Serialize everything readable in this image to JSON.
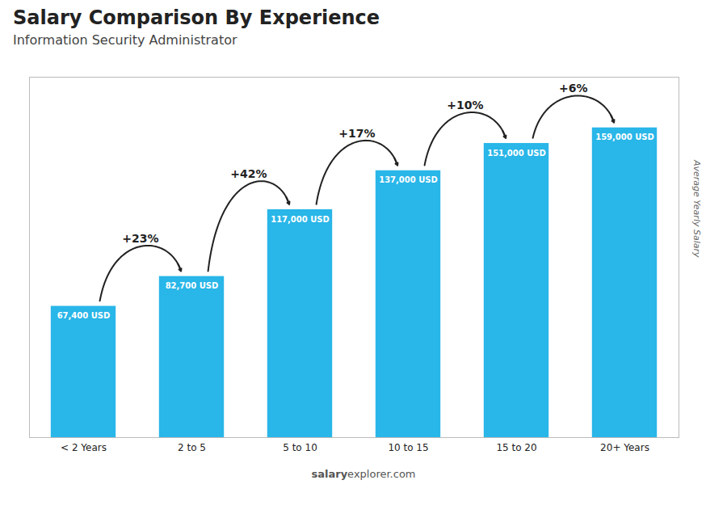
{
  "chart_data": {
    "type": "bar",
    "title": "Salary Comparison By Experience",
    "subtitle": "Information Security Administrator",
    "categories": [
      "< 2 Years",
      "2 to 5",
      "5 to 10",
      "10 to 15",
      "15 to 20",
      "20+ Years"
    ],
    "values": [
      67400,
      82700,
      117000,
      137000,
      151000,
      159000
    ],
    "value_labels": [
      "67,400 USD",
      "82,700 USD",
      "117,000 USD",
      "137,000 USD",
      "151,000 USD",
      "159,000 USD"
    ],
    "data_labels": true,
    "color": "#29b6e8",
    "ylabel": "Average Yearly Salary",
    "ylim": [
      0,
      185000
    ],
    "tick_labels": "x",
    "grid": false,
    "annotations": [
      {
        "text": "+23%",
        "from": "< 2 Years",
        "to": "2 to 5"
      },
      {
        "text": "+42%",
        "from": "2 to 5",
        "to": "5 to 10"
      },
      {
        "text": "+17%",
        "from": "5 to 10",
        "to": "10 to 15"
      },
      {
        "text": "+10%",
        "from": "10 to 15",
        "to": "15 to 20"
      },
      {
        "text": "+6%",
        "from": "15 to 20",
        "to": "20+ Years"
      }
    ],
    "caption": [
      "salary",
      "explorer.com"
    ]
  }
}
